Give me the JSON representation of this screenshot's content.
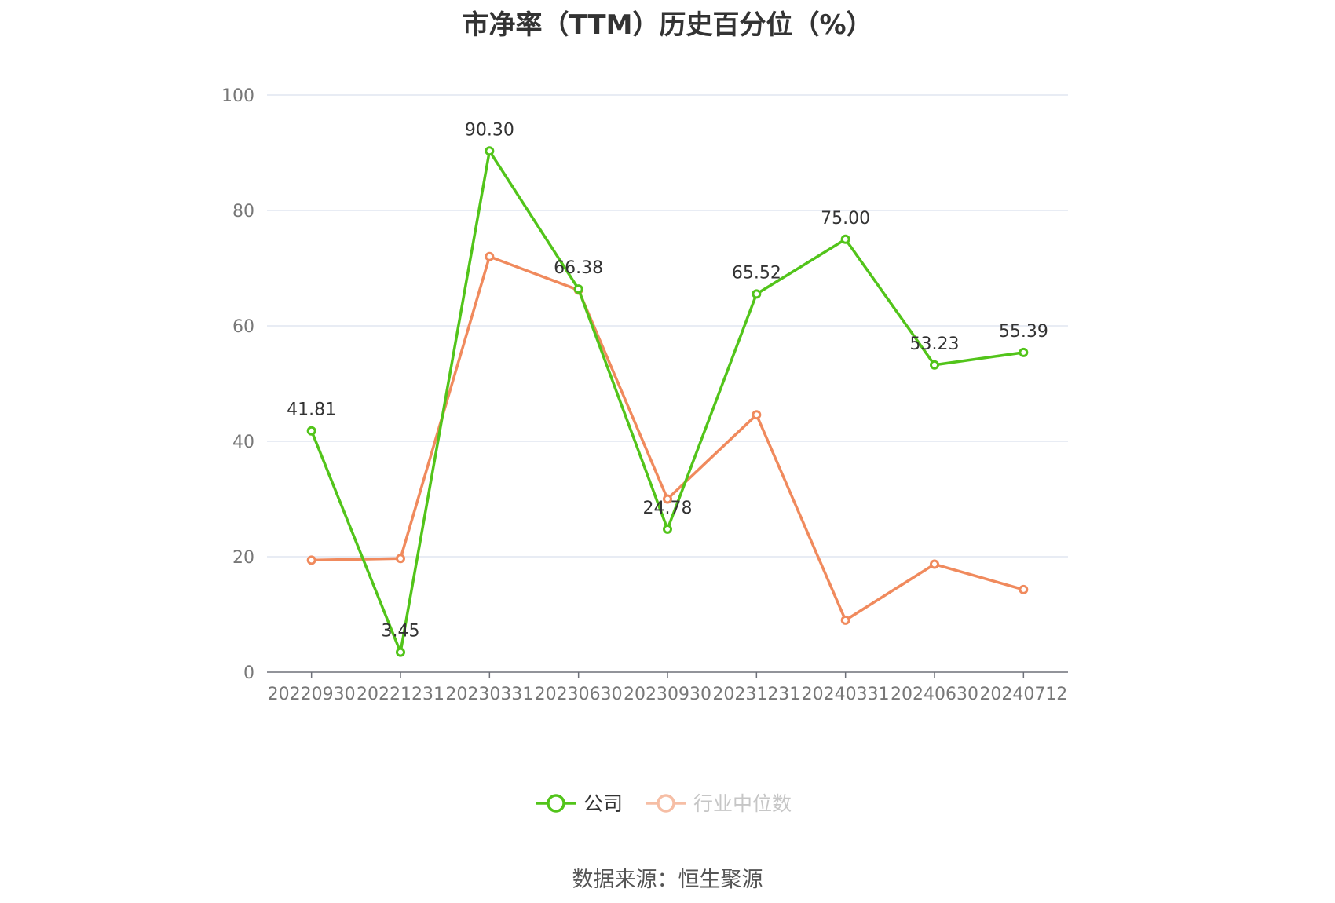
{
  "title": "市净率（TTM）历史百分位（%）",
  "source": "数据来源：恒生聚源",
  "chart_data": {
    "type": "line",
    "title": "市净率（TTM）历史百分位（%）",
    "categories": [
      "20220930",
      "20221231",
      "20230331",
      "20230630",
      "20230930",
      "20231231",
      "20240331",
      "20240630",
      "20240712"
    ],
    "ylim": [
      0,
      100
    ],
    "yticks": [
      0,
      20,
      40,
      60,
      80,
      100
    ],
    "grid": true,
    "legend_position": "bottom",
    "series": [
      {
        "name": "公司",
        "color": "#52c41a",
        "values": [
          41.81,
          3.45,
          90.3,
          66.38,
          24.78,
          65.52,
          75.0,
          53.23,
          55.39
        ],
        "data_labels": [
          "41.81",
          "3.45",
          "90.30",
          "66.38",
          "24.78",
          "65.52",
          "75.00",
          "53.23",
          "55.39"
        ]
      },
      {
        "name": "行业中位数",
        "color": "#f08a5d",
        "values": [
          19.4,
          19.7,
          72.0,
          66.2,
          30.0,
          44.6,
          9.0,
          18.7,
          14.3
        ]
      }
    ]
  }
}
